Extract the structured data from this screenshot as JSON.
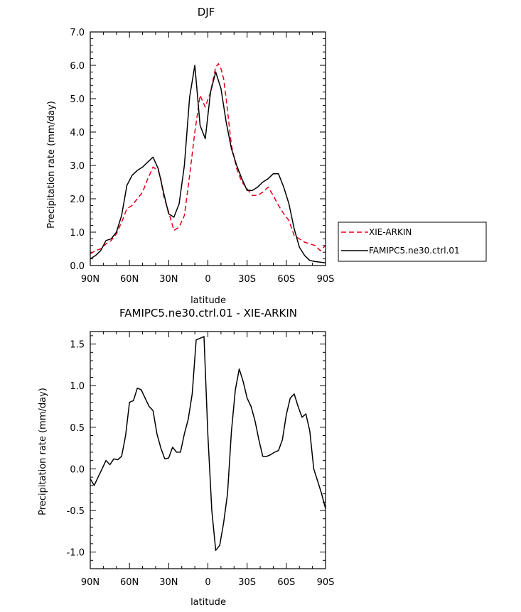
{
  "chart_data": [
    {
      "type": "line",
      "title": "DJF",
      "xlabel": "latitude",
      "ylabel": "Precipitation rate (mm/day)",
      "xlim": [
        90,
        -90
      ],
      "ylim": [
        0,
        7
      ],
      "x_ticks": [
        90,
        60,
        30,
        0,
        -30,
        -60,
        -90
      ],
      "x_tick_labels": [
        "90N",
        "60N",
        "30N",
        "0",
        "30S",
        "60S",
        "90S"
      ],
      "y_ticks": [
        0,
        1,
        2,
        3,
        4,
        5,
        6,
        7
      ],
      "y_tick_labels": [
        "0.0",
        "1.0",
        "2.0",
        "3.0",
        "4.0",
        "5.0",
        "6.0",
        "7.0"
      ],
      "legend_position": "right",
      "series": [
        {
          "name": "XIE-ARKIN",
          "color": "#e8001c",
          "dash": "dashed",
          "x": [
            90,
            86,
            82,
            78,
            74,
            70,
            66,
            62,
            58,
            54,
            50,
            46,
            42,
            38,
            36,
            34,
            30,
            26,
            22,
            18,
            14,
            10,
            6,
            2,
            -2,
            -6,
            -8,
            -10,
            -12,
            -14,
            -18,
            -22,
            -26,
            -30,
            -34,
            -38,
            -42,
            -46,
            -50,
            -54,
            -58,
            -62,
            -66,
            -70,
            -74,
            -78,
            -82,
            -86,
            -90
          ],
          "values": [
            0.35,
            0.45,
            0.5,
            0.65,
            0.75,
            0.95,
            1.3,
            1.7,
            1.8,
            2.0,
            2.2,
            2.6,
            2.95,
            2.85,
            2.6,
            2.1,
            1.6,
            1.05,
            1.15,
            1.5,
            2.7,
            4.0,
            5.1,
            4.75,
            5.2,
            5.95,
            6.05,
            5.9,
            5.6,
            5.0,
            3.6,
            2.9,
            2.5,
            2.3,
            2.1,
            2.1,
            2.2,
            2.35,
            2.1,
            1.8,
            1.55,
            1.35,
            0.9,
            0.8,
            0.7,
            0.65,
            0.6,
            0.45,
            0.6
          ]
        },
        {
          "name": "FAMIPC5.ne30.ctrl.01",
          "color": "#000000",
          "dash": "solid",
          "x": [
            90,
            86,
            82,
            78,
            74,
            70,
            66,
            62,
            58,
            54,
            50,
            46,
            42,
            38,
            34,
            30,
            26,
            22,
            18,
            14,
            10,
            6,
            2,
            -2,
            -6,
            -10,
            -14,
            -18,
            -22,
            -26,
            -30,
            -34,
            -38,
            -42,
            -46,
            -50,
            -54,
            -58,
            -62,
            -66,
            -70,
            -74,
            -78,
            -82,
            -86,
            -90
          ],
          "values": [
            0.2,
            0.3,
            0.45,
            0.75,
            0.8,
            1.0,
            1.5,
            2.4,
            2.7,
            2.85,
            2.95,
            3.1,
            3.25,
            2.9,
            2.2,
            1.55,
            1.45,
            1.85,
            3.0,
            5.05,
            6.0,
            4.2,
            3.8,
            5.2,
            5.8,
            5.3,
            4.3,
            3.5,
            3.0,
            2.6,
            2.25,
            2.25,
            2.35,
            2.5,
            2.6,
            2.75,
            2.75,
            2.35,
            1.85,
            1.1,
            0.55,
            0.3,
            0.15,
            0.12,
            0.1,
            0.08
          ]
        }
      ]
    },
    {
      "type": "line",
      "title": "FAMIPC5.ne30.ctrl.01 - XIE-ARKIN",
      "xlabel": "latitude",
      "ylabel": "Precipitation rate (mm/day)",
      "xlim": [
        90,
        -90
      ],
      "ylim": [
        -1.2,
        1.65
      ],
      "x_ticks": [
        90,
        60,
        30,
        0,
        -30,
        -60,
        -90
      ],
      "x_tick_labels": [
        "90N",
        "60N",
        "30N",
        "0",
        "30S",
        "60S",
        "90S"
      ],
      "y_ticks": [
        -1.0,
        -0.5,
        0.0,
        0.5,
        1.0,
        1.5
      ],
      "y_tick_labels": [
        "-1.0",
        "-0.5",
        "0.0",
        "0.5",
        "1.0",
        "1.5"
      ],
      "series": [
        {
          "color": "#000000",
          "dash": "solid",
          "x": [
            90,
            87,
            84,
            81,
            78,
            75,
            72,
            69,
            66,
            63,
            60,
            57,
            54,
            51,
            48,
            45,
            42,
            39,
            36,
            33,
            30,
            27,
            24,
            21,
            18,
            15,
            12,
            9,
            6,
            3,
            0,
            -3,
            -6,
            -9,
            -12,
            -15,
            -18,
            -21,
            -24,
            -27,
            -30,
            -33,
            -36,
            -39,
            -42,
            -45,
            -48,
            -51,
            -54,
            -57,
            -60,
            -63,
            -66,
            -69,
            -72,
            -75,
            -78,
            -81,
            -84,
            -87,
            -90
          ],
          "values": [
            -0.12,
            -0.2,
            -0.1,
            0.0,
            0.1,
            0.05,
            0.12,
            0.11,
            0.15,
            0.4,
            0.8,
            0.82,
            0.97,
            0.95,
            0.85,
            0.75,
            0.7,
            0.42,
            0.25,
            0.12,
            0.13,
            0.26,
            0.2,
            0.2,
            0.42,
            0.6,
            0.9,
            1.55,
            1.57,
            1.59,
            0.4,
            -0.5,
            -0.98,
            -0.92,
            -0.65,
            -0.3,
            0.45,
            0.95,
            1.2,
            1.05,
            0.85,
            0.75,
            0.58,
            0.35,
            0.15,
            0.15,
            0.17,
            0.2,
            0.22,
            0.35,
            0.65,
            0.85,
            0.9,
            0.75,
            0.62,
            0.66,
            0.45,
            0.0,
            -0.15,
            -0.3,
            -0.48
          ]
        }
      ]
    }
  ]
}
